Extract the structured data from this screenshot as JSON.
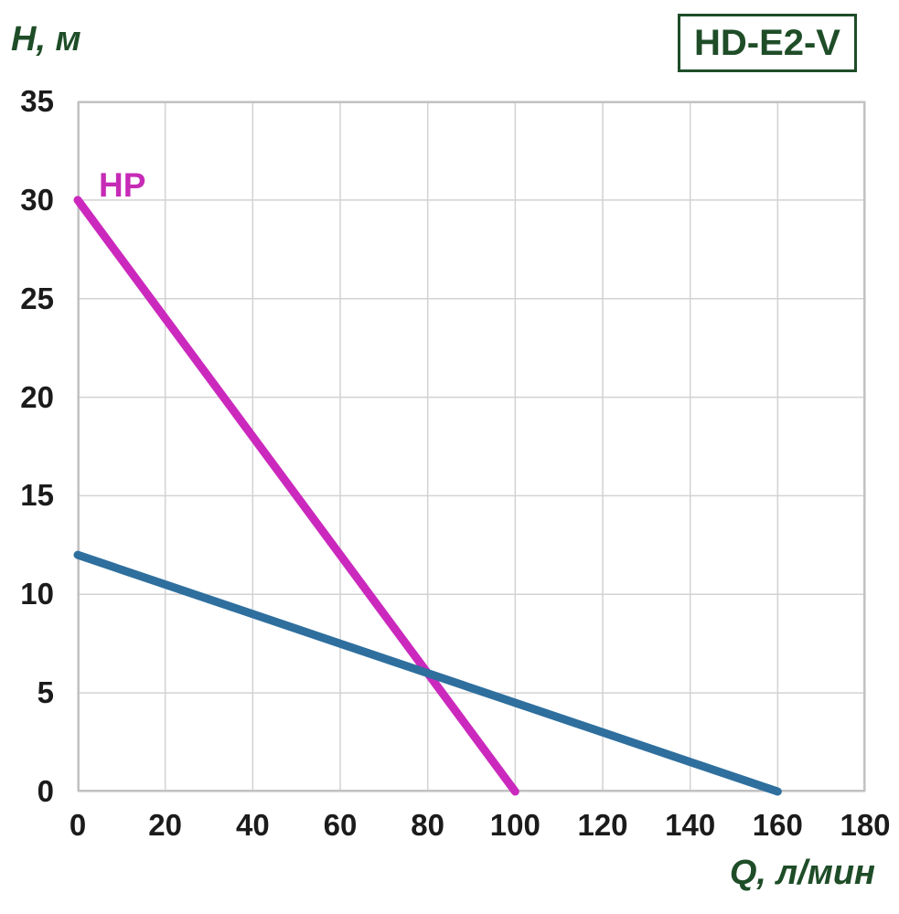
{
  "labels": {
    "y_axis_title": "H, м",
    "x_axis_title": "Q, л/мин",
    "model_badge": "HD-E2-V"
  },
  "colors": {
    "label_green": "#1e4d28",
    "tick_text": "#1b1b1b",
    "grid_line": "#d2d2d2",
    "plot_border": "#c2c2c2",
    "hp_line": "#cb29bd",
    "main_line": "#2e6f9e",
    "background": "#ffffff"
  },
  "chart_data": {
    "type": "line",
    "title": "HD-E2-V",
    "xlabel": "Q, л/мин",
    "ylabel": "H, м",
    "xlim": [
      0,
      180
    ],
    "ylim": [
      0,
      35
    ],
    "x_ticks": [
      0,
      20,
      40,
      60,
      80,
      100,
      120,
      140,
      160,
      180
    ],
    "y_ticks": [
      0,
      5,
      10,
      15,
      20,
      25,
      30,
      35
    ],
    "grid": true,
    "x_grid_step": 20,
    "y_grid_step": 5,
    "legend_position": "inline-label-on-curve",
    "series": [
      {
        "name": "HP",
        "label": "HP",
        "color": "#cb29bd",
        "points": [
          [
            0,
            30
          ],
          [
            100,
            0
          ]
        ]
      },
      {
        "name": "pump-curve",
        "label": "",
        "color": "#2e6f9e",
        "points": [
          [
            0,
            12
          ],
          [
            160,
            0
          ]
        ]
      }
    ],
    "crossing_point": [
      80,
      6
    ]
  }
}
